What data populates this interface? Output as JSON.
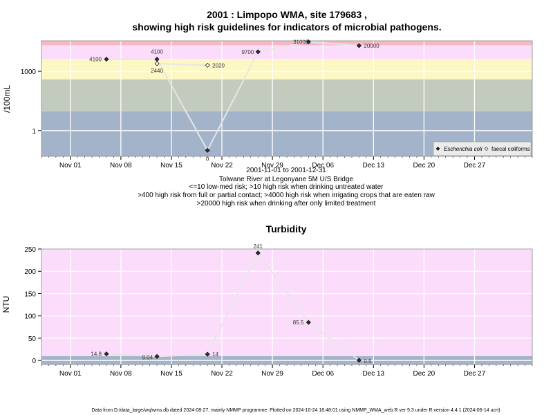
{
  "chart_data": [
    {
      "type": "scatter",
      "title": "2001 : Limpopo WMA, site 179683 ,",
      "title_line2": "showing high risk guidelines for indicators of microbial pathogens.",
      "ylabel": "/100mL",
      "yscale": "log",
      "ylim": [
        0.05,
        35000
      ],
      "y_ticks": [
        {
          "value": 1,
          "label": "1"
        },
        {
          "value": 1000,
          "label": "1000"
        }
      ],
      "x_range": [
        "2001-10-28",
        "2002-01-04"
      ],
      "x_ticks": [
        {
          "date": "2001-11-01",
          "label": "Nov 01"
        },
        {
          "date": "2001-11-08",
          "label": "Nov 08"
        },
        {
          "date": "2001-11-15",
          "label": "Nov 15"
        },
        {
          "date": "2001-11-22",
          "label": "Nov 22"
        },
        {
          "date": "2001-11-29",
          "label": "Nov 29"
        },
        {
          "date": "2001-12-06",
          "label": "Dec 06"
        },
        {
          "date": "2001-12-13",
          "label": "Dec 13"
        },
        {
          "date": "2001-12-20",
          "label": "Dec 20"
        },
        {
          "date": "2001-12-27",
          "label": "Dec 27"
        }
      ],
      "bands": [
        {
          "from": 0.05,
          "to": 10,
          "color": "#a3b4ca"
        },
        {
          "from": 10,
          "to": 400,
          "color": "#c2cbbe"
        },
        {
          "from": 400,
          "to": 4000,
          "color": "#fdf7c3"
        },
        {
          "from": 4000,
          "to": 20000,
          "color": "#fbddfb"
        },
        {
          "from": 20000,
          "to": 35000,
          "color": "#f9b7c6"
        }
      ],
      "guide_lines": [
        10,
        400,
        4000,
        20000
      ],
      "series": [
        {
          "name": "Escherichia coli",
          "marker": "filled-diamond",
          "points": [
            {
              "x": "2001-11-06",
              "y": 4100,
              "label": "4100"
            },
            {
              "x": "2001-11-13",
              "y": 4100,
              "label": "4100"
            },
            {
              "x": "2001-11-20",
              "y": 0.1,
              "label": "0"
            },
            {
              "x": "2001-11-27",
              "y": 9700,
              "label": "9700"
            },
            {
              "x": "2001-12-04",
              "y": 31000,
              "label": "31000"
            },
            {
              "x": "2001-12-11",
              "y": 20000,
              "label": "20000"
            }
          ]
        },
        {
          "name": "faecal coliforms",
          "marker": "open-diamond",
          "points": [
            {
              "x": "2001-11-13",
              "y": 2440,
              "label": "2440"
            },
            {
              "x": "2001-11-20",
              "y": 2020,
              "label": "2020"
            }
          ]
        }
      ],
      "legend_position": "bottom-right",
      "notes": [
        "2001-11-01 to 2001-12-31",
        "Tolwane River at Legonyane 5M U/S Bridge",
        "<=10 low-med risk; >10 high risk when drinking untreated water",
        ">400 high risk from full or partial contact; >4000 high risk when irrigating crops that are eaten raw",
        ">20000 high risk when drinking after only limited treatment"
      ]
    },
    {
      "type": "scatter",
      "title": "Turbidity",
      "ylabel": "NTU",
      "ylim": [
        -9,
        250
      ],
      "y_ticks": [
        0,
        50,
        100,
        150,
        200,
        250
      ],
      "x_range": [
        "2001-10-28",
        "2002-01-04"
      ],
      "x_ticks": [
        {
          "date": "2001-11-01",
          "label": "Nov 01"
        },
        {
          "date": "2001-11-08",
          "label": "Nov 08"
        },
        {
          "date": "2001-11-15",
          "label": "Nov 15"
        },
        {
          "date": "2001-11-22",
          "label": "Nov 22"
        },
        {
          "date": "2001-11-29",
          "label": "Nov 29"
        },
        {
          "date": "2001-12-06",
          "label": "Dec 06"
        },
        {
          "date": "2001-12-13",
          "label": "Dec 13"
        },
        {
          "date": "2001-12-20",
          "label": "Dec 20"
        },
        {
          "date": "2001-12-27",
          "label": "Dec 27"
        }
      ],
      "bands": [
        {
          "from": -9,
          "to": 10,
          "color": "#a3b4ca"
        },
        {
          "from": 10,
          "to": 250,
          "color": "#fbddfb"
        }
      ],
      "series": [
        {
          "marker": "filled-diamond",
          "points": [
            {
              "x": "2001-11-06",
              "y": 14.8,
              "label": "14.8"
            },
            {
              "x": "2001-11-13",
              "y": 9.04,
              "label": "9.04"
            },
            {
              "x": "2001-11-20",
              "y": 14,
              "label": "14"
            },
            {
              "x": "2001-11-27",
              "y": 241,
              "label": "241"
            },
            {
              "x": "2001-12-04",
              "y": 85.5,
              "label": "85.5"
            },
            {
              "x": "2001-12-11",
              "y": 0.5,
              "label": "0.5"
            }
          ]
        }
      ]
    }
  ],
  "footer": "Data from D:/data_large/wq/wms.db dated 2024-08-27, mainly NMMP programme. Plotted on 2024-10-24 18:48:01 using NMMP_WMA_web.R ver 9.3 under R version 4.4.1 (2024-06-14 ucrt)"
}
